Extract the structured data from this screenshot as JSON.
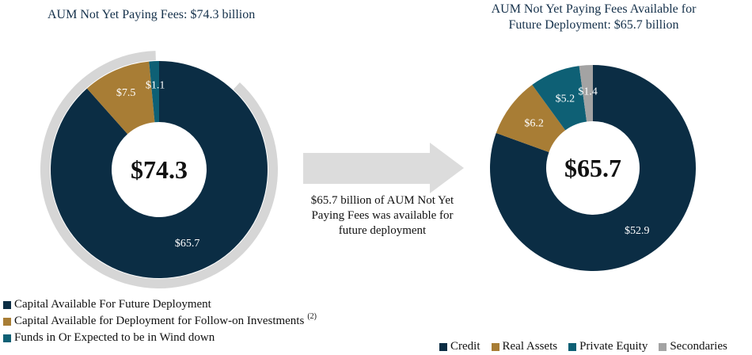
{
  "chart_data": [
    {
      "type": "pie",
      "variant": "donut",
      "title": "AUM Not Yet Paying Fees: $74.3 billion",
      "center_label": "$74.3",
      "slices": [
        {
          "label": "Capital Available For Future Deployment",
          "value": 65.7,
          "display": "$65.7",
          "color": "#0b2d44"
        },
        {
          "label": "Capital Available for Deployment for Follow-on Investments",
          "value": 7.5,
          "display": "$7.5",
          "color": "#a87d35"
        },
        {
          "label": "Funds in Or Expected to be in Wind down",
          "value": 1.1,
          "display": "$1.1",
          "color": "#0e6075"
        }
      ],
      "legend": [
        {
          "label": "Capital Available For Future Deployment",
          "footnote": ""
        },
        {
          "label": "Capital Available for Deployment for Follow-on Investments",
          "footnote": "(2)"
        },
        {
          "label": "Funds in Or Expected to be in Wind down",
          "footnote": ""
        }
      ],
      "legend_position": "bottom-left"
    },
    {
      "type": "pie",
      "variant": "donut",
      "title_lines": [
        "AUM Not Yet Paying Fees Available for",
        "Future Deployment: $65.7 billion"
      ],
      "center_label": "$65.7",
      "slices": [
        {
          "label": "Credit",
          "value": 52.9,
          "display": "$52.9",
          "color": "#0b2d44"
        },
        {
          "label": "Real Assets",
          "value": 6.2,
          "display": "$6.2",
          "color": "#a87d35"
        },
        {
          "label": "Private Equity",
          "value": 5.2,
          "display": "$5.2",
          "color": "#0e6075"
        },
        {
          "label": "Secondaries",
          "value": 1.4,
          "display": "$1.4",
          "color": "#a3a3a3"
        }
      ],
      "legend_position": "bottom-right"
    }
  ],
  "annotation": {
    "arrow_text": "$65.7 billion of AUM Not Yet Paying Fees was available for future deployment"
  }
}
